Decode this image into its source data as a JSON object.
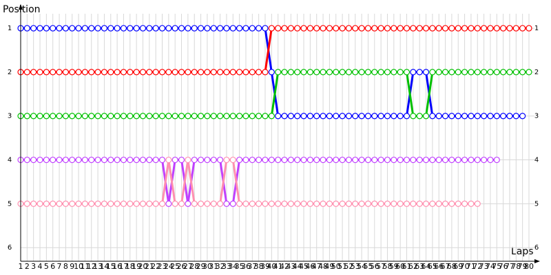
{
  "chart_data": {
    "type": "line",
    "y_axis_title": "Position",
    "x_axis_title": "Laps",
    "x": [
      1,
      2,
      3,
      4,
      5,
      6,
      7,
      8,
      9,
      10,
      11,
      12,
      13,
      14,
      15,
      16,
      17,
      18,
      19,
      20,
      21,
      22,
      23,
      24,
      25,
      26,
      27,
      28,
      29,
      30,
      31,
      32,
      33,
      34,
      35,
      36,
      37,
      38,
      39,
      40,
      41,
      42,
      43,
      44,
      45,
      46,
      47,
      48,
      49,
      50,
      51,
      52,
      53,
      54,
      55,
      56,
      57,
      58,
      59,
      60,
      61,
      62,
      63,
      64,
      65,
      66,
      67,
      68,
      69,
      70,
      71,
      72,
      73,
      74,
      75,
      76,
      77,
      78,
      79,
      80
    ],
    "ylim": [
      0.67,
      6.31
    ],
    "yticks": [
      1,
      2,
      3,
      4,
      5,
      6
    ],
    "y_reversed": true,
    "grid": true,
    "series": [
      {
        "name": "blue",
        "color": "#0000ff",
        "values": [
          1,
          1,
          1,
          1,
          1,
          1,
          1,
          1,
          1,
          1,
          1,
          1,
          1,
          1,
          1,
          1,
          1,
          1,
          1,
          1,
          1,
          1,
          1,
          1,
          1,
          1,
          1,
          1,
          1,
          1,
          1,
          1,
          1,
          1,
          1,
          1,
          1,
          1,
          1,
          2,
          3,
          3,
          3,
          3,
          3,
          3,
          3,
          3,
          3,
          3,
          3,
          3,
          3,
          3,
          3,
          3,
          3,
          3,
          3,
          3,
          3,
          2,
          2,
          2,
          3,
          3,
          3,
          3,
          3,
          3,
          3,
          3,
          3,
          3,
          3,
          3,
          3,
          3,
          3,
          null
        ]
      },
      {
        "name": "red",
        "color": "#ff0000",
        "values": [
          2,
          2,
          2,
          2,
          2,
          2,
          2,
          2,
          2,
          2,
          2,
          2,
          2,
          2,
          2,
          2,
          2,
          2,
          2,
          2,
          2,
          2,
          2,
          2,
          2,
          2,
          2,
          2,
          2,
          2,
          2,
          2,
          2,
          2,
          2,
          2,
          2,
          2,
          2,
          1,
          1,
          1,
          1,
          1,
          1,
          1,
          1,
          1,
          1,
          1,
          1,
          1,
          1,
          1,
          1,
          1,
          1,
          1,
          1,
          1,
          1,
          1,
          1,
          1,
          1,
          1,
          1,
          1,
          1,
          1,
          1,
          1,
          1,
          1,
          1,
          1,
          1,
          1,
          1,
          1
        ]
      },
      {
        "name": "green",
        "color": "#00c000",
        "values": [
          3,
          3,
          3,
          3,
          3,
          3,
          3,
          3,
          3,
          3,
          3,
          3,
          3,
          3,
          3,
          3,
          3,
          3,
          3,
          3,
          3,
          3,
          3,
          3,
          3,
          3,
          3,
          3,
          3,
          3,
          3,
          3,
          3,
          3,
          3,
          3,
          3,
          3,
          3,
          3,
          2,
          2,
          2,
          2,
          2,
          2,
          2,
          2,
          2,
          2,
          2,
          2,
          2,
          2,
          2,
          2,
          2,
          2,
          2,
          2,
          2,
          3,
          3,
          3,
          2,
          2,
          2,
          2,
          2,
          2,
          2,
          2,
          2,
          2,
          2,
          2,
          2,
          2,
          2,
          2
        ]
      },
      {
        "name": "purple",
        "color": "#c040ff",
        "values": [
          4,
          4,
          4,
          4,
          4,
          4,
          4,
          4,
          4,
          4,
          4,
          4,
          4,
          4,
          4,
          4,
          4,
          4,
          4,
          4,
          4,
          4,
          4,
          5,
          4,
          4,
          5,
          4,
          4,
          4,
          4,
          4,
          5,
          5,
          4,
          4,
          4,
          4,
          4,
          4,
          4,
          4,
          4,
          4,
          4,
          4,
          4,
          4,
          4,
          4,
          4,
          4,
          4,
          4,
          4,
          4,
          4,
          4,
          4,
          4,
          4,
          4,
          4,
          4,
          4,
          4,
          4,
          4,
          4,
          4,
          4,
          4,
          4,
          4,
          4,
          null,
          null,
          null,
          null,
          null
        ]
      },
      {
        "name": "pink",
        "color": "#ff90b0",
        "values": [
          5,
          5,
          5,
          5,
          5,
          5,
          5,
          5,
          5,
          5,
          5,
          5,
          5,
          5,
          5,
          5,
          5,
          5,
          5,
          5,
          5,
          5,
          5,
          4,
          5,
          5,
          4,
          5,
          5,
          5,
          5,
          5,
          4,
          4,
          5,
          5,
          5,
          5,
          5,
          5,
          5,
          5,
          5,
          5,
          5,
          5,
          5,
          5,
          5,
          5,
          5,
          5,
          5,
          5,
          5,
          5,
          5,
          5,
          5,
          5,
          5,
          5,
          5,
          5,
          5,
          5,
          5,
          5,
          5,
          5,
          5,
          5,
          null,
          null,
          null,
          null,
          null,
          null,
          null,
          null
        ]
      }
    ]
  }
}
